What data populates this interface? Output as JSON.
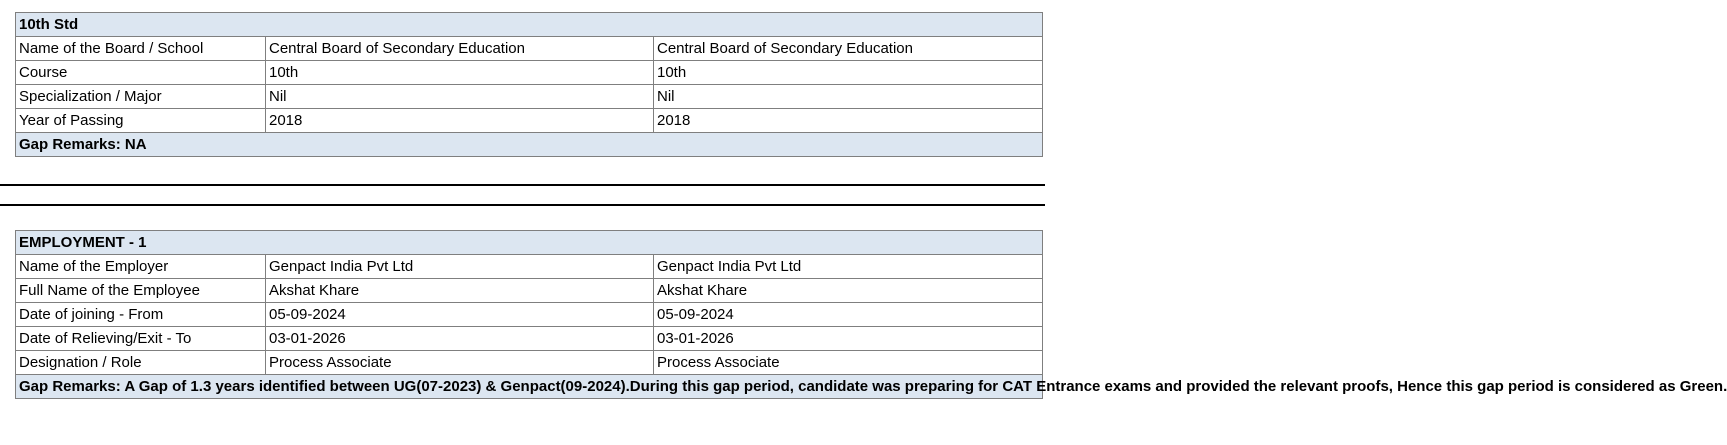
{
  "education": {
    "title": "10th Std",
    "rows": [
      {
        "label": "Name of the Board / School",
        "value_a": "Central Board of Secondary Education",
        "value_b": "Central Board of Secondary Education"
      },
      {
        "label": "Course",
        "value_a": "10th",
        "value_b": "10th"
      },
      {
        "label": "Specialization / Major",
        "value_a": "Nil",
        "value_b": "Nil"
      },
      {
        "label": "Year of Passing",
        "value_a": "2018",
        "value_b": "2018"
      }
    ],
    "gap_remarks": "Gap Remarks: NA"
  },
  "employment": {
    "title": "EMPLOYMENT - 1",
    "rows": [
      {
        "label": "Name of the Employer",
        "value_a": "Genpact India Pvt Ltd",
        "value_b": "Genpact India Pvt Ltd"
      },
      {
        "label": "Full Name of the Employee",
        "value_a": "Akshat Khare",
        "value_b": "Akshat Khare"
      },
      {
        "label": "Date of joining - From",
        "value_a": "05-09-2024",
        "value_b": "05-09-2024"
      },
      {
        "label": "Date of Relieving/Exit - To",
        "value_a": "03-01-2026",
        "value_b": "03-01-2026"
      },
      {
        "label": "Designation / Role",
        "value_a": "Process Associate",
        "value_b": "Process Associate"
      }
    ],
    "gap_remarks": "Gap Remarks: A Gap of 1.3 years identified between UG(07-2023) & Genpact(09-2024).During this gap period, candidate was preparing for CAT Entrance exams and provided the relevant proofs, Hence this gap period is considered as Green."
  }
}
